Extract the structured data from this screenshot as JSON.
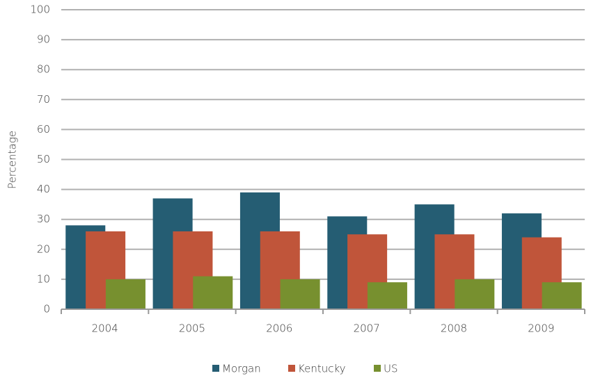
{
  "chart_data": {
    "type": "bar",
    "categories": [
      "2004",
      "2005",
      "2006",
      "2007",
      "2008",
      "2009"
    ],
    "series": [
      {
        "name": "Morgan",
        "color": "#255d73",
        "values": [
          28,
          37,
          39,
          31,
          35,
          32
        ]
      },
      {
        "name": "Kentucky",
        "color": "#c0553a",
        "values": [
          26,
          26,
          26,
          25,
          25,
          24
        ]
      },
      {
        "name": "US",
        "color": "#77902f",
        "values": [
          10,
          11,
          10,
          9,
          10,
          9
        ]
      }
    ],
    "y_label": "Percentage",
    "ylim": [
      0,
      100
    ],
    "yticks": [
      0,
      10,
      20,
      30,
      40,
      50,
      60,
      70,
      80,
      90,
      100
    ],
    "grid": true,
    "legend": "bottom"
  }
}
